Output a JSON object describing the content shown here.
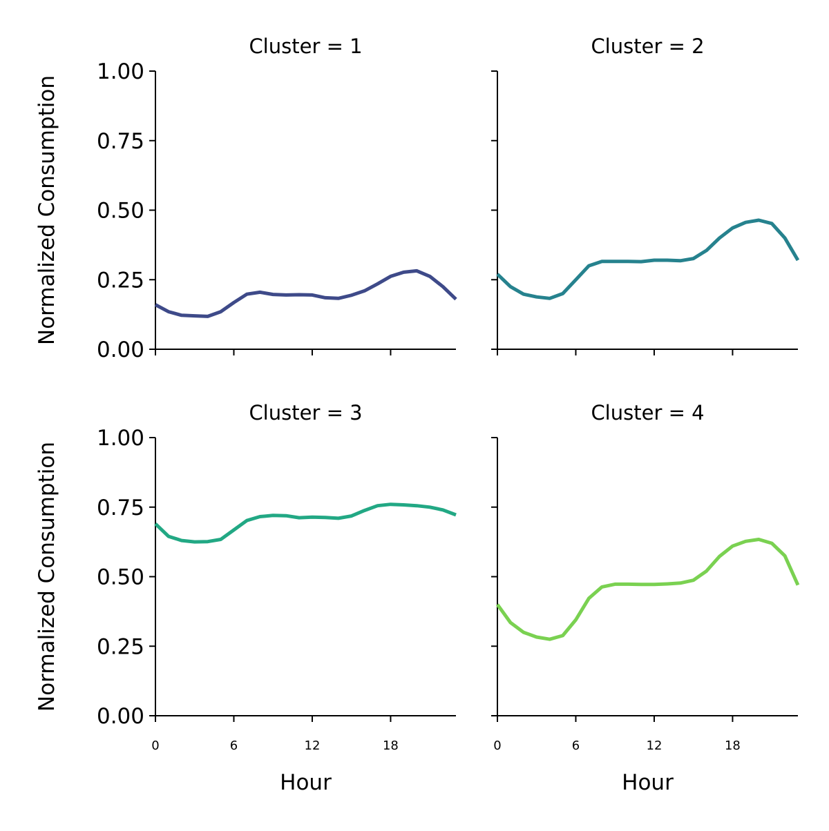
{
  "chart_data": {
    "type": "line",
    "panels": [
      {
        "title": "Cluster = 1",
        "color": "#3e4a89",
        "x": [
          0,
          1,
          2,
          3,
          4,
          5,
          6,
          7,
          8,
          9,
          10,
          11,
          12,
          13,
          14,
          15,
          16,
          17,
          18,
          19,
          20,
          21,
          22,
          23
        ],
        "values": [
          0.16,
          0.135,
          0.122,
          0.12,
          0.118,
          0.135,
          0.168,
          0.198,
          0.205,
          0.197,
          0.195,
          0.196,
          0.195,
          0.185,
          0.183,
          0.194,
          0.21,
          0.235,
          0.262,
          0.277,
          0.282,
          0.262,
          0.225,
          0.18
        ]
      },
      {
        "title": "Cluster = 2",
        "color": "#26828e",
        "x": [
          0,
          1,
          2,
          3,
          4,
          5,
          6,
          7,
          8,
          9,
          10,
          11,
          12,
          13,
          14,
          15,
          16,
          17,
          18,
          19,
          20,
          21,
          22,
          23
        ],
        "values": [
          0.27,
          0.225,
          0.198,
          0.188,
          0.183,
          0.2,
          0.25,
          0.3,
          0.316,
          0.316,
          0.316,
          0.315,
          0.32,
          0.32,
          0.318,
          0.326,
          0.355,
          0.4,
          0.436,
          0.456,
          0.464,
          0.452,
          0.4,
          0.32
        ]
      },
      {
        "title": "Cluster = 3",
        "color": "#22a884",
        "x": [
          0,
          1,
          2,
          3,
          4,
          5,
          6,
          7,
          8,
          9,
          10,
          11,
          12,
          13,
          14,
          15,
          16,
          17,
          18,
          19,
          20,
          21,
          22,
          23
        ],
        "values": [
          0.69,
          0.645,
          0.63,
          0.625,
          0.626,
          0.634,
          0.668,
          0.702,
          0.716,
          0.72,
          0.719,
          0.712,
          0.714,
          0.713,
          0.71,
          0.718,
          0.738,
          0.755,
          0.76,
          0.758,
          0.755,
          0.75,
          0.74,
          0.722
        ]
      },
      {
        "title": "Cluster = 4",
        "color": "#7ad151",
        "x": [
          0,
          1,
          2,
          3,
          4,
          5,
          6,
          7,
          8,
          9,
          10,
          11,
          12,
          13,
          14,
          15,
          16,
          17,
          18,
          19,
          20,
          21,
          22,
          23
        ],
        "values": [
          0.4,
          0.335,
          0.3,
          0.283,
          0.275,
          0.288,
          0.345,
          0.422,
          0.463,
          0.473,
          0.473,
          0.472,
          0.472,
          0.474,
          0.477,
          0.487,
          0.52,
          0.573,
          0.61,
          0.627,
          0.634,
          0.62,
          0.575,
          0.47
        ]
      }
    ],
    "xlabel": "Hour",
    "ylabel": "Normalized Consumption",
    "xlim": [
      0,
      23
    ],
    "ylim": [
      0,
      1
    ],
    "xticks": [
      0,
      6,
      12,
      18
    ],
    "xtick_labels": [
      "0",
      "6",
      "12",
      "18"
    ],
    "yticks": [
      0,
      0.25,
      0.5,
      0.75,
      1
    ],
    "ytick_labels": [
      "0.00",
      "0.25",
      "0.50",
      "0.75",
      "1.00"
    ],
    "shared_axes": true,
    "grid": false,
    "legend": "none"
  }
}
